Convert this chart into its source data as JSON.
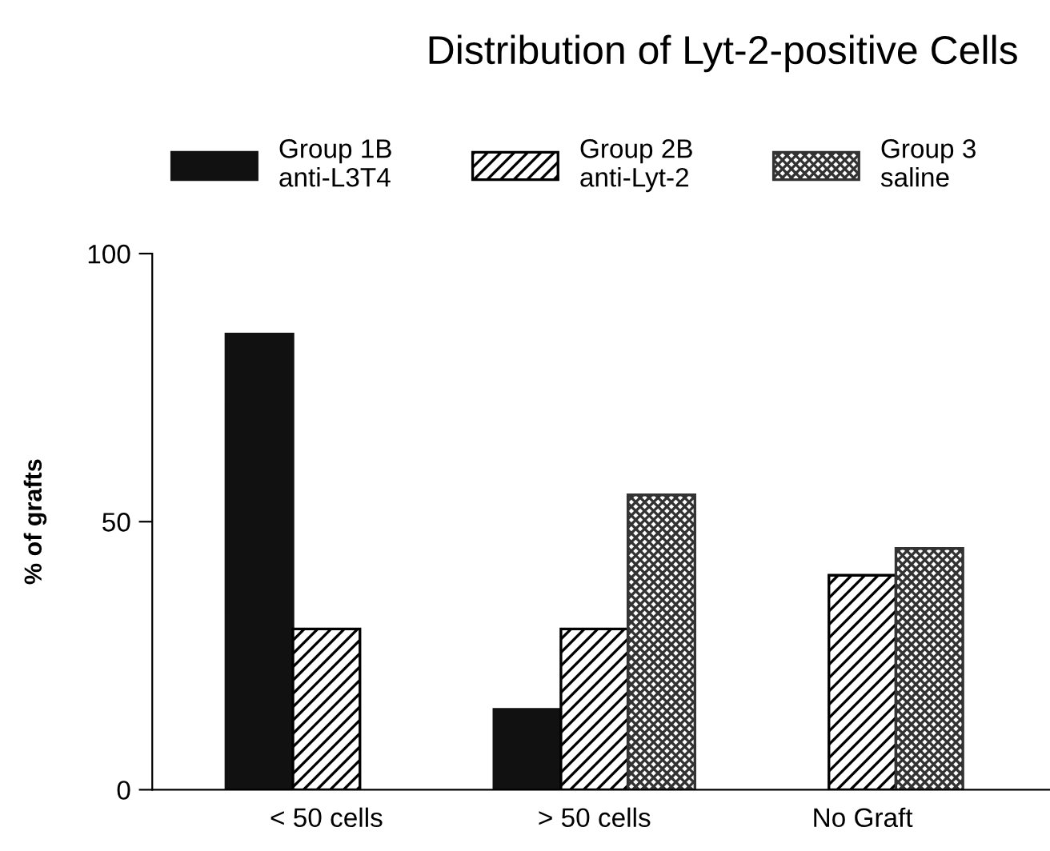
{
  "chart_data": {
    "type": "bar",
    "title": "Distribution of Lyt-2-positive Cells",
    "ylabel": "% of grafts",
    "categories": [
      "< 50 cells",
      "> 50 cells",
      "No Graft"
    ],
    "series": [
      {
        "name": "Group 1B\nanti-L3T4",
        "color": "#111111",
        "values": [
          85,
          15,
          null
        ]
      },
      {
        "name": "Group 2B\nanti-Lyt-2",
        "color": "#000000",
        "values": [
          30,
          30,
          40
        ]
      },
      {
        "name": "Group 3\nsaline",
        "color": "#333333",
        "values": [
          null,
          55,
          45
        ]
      }
    ],
    "ylim": [
      0,
      100
    ],
    "yticks": [
      0,
      50,
      100
    ],
    "grid": false,
    "legend": "top"
  }
}
